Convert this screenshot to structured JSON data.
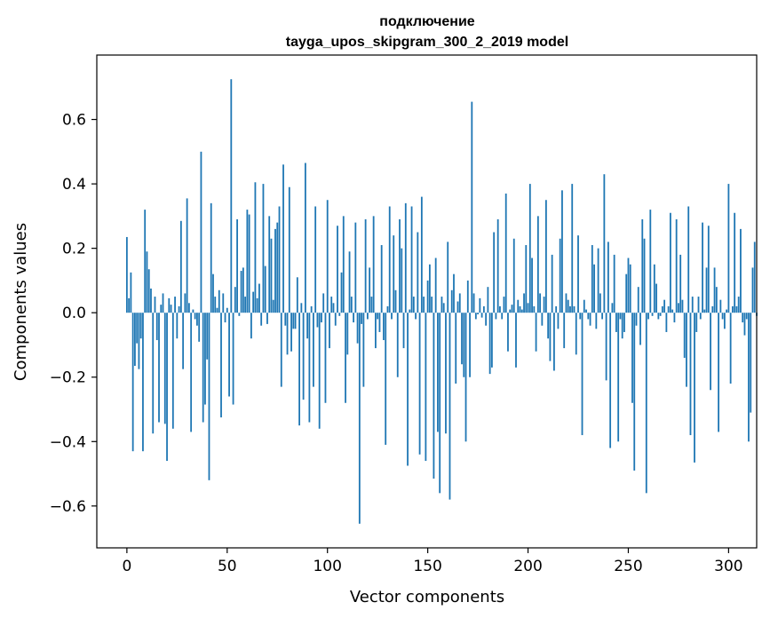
{
  "chart_data": {
    "type": "bar",
    "title_line1": "подключение",
    "title_line2": "tayga_upos_skipgram_300_2_2019 model",
    "xlabel": "Vector components",
    "ylabel": "Components values",
    "xlim": [
      -15,
      314
    ],
    "ylim": [
      -0.73,
      0.8
    ],
    "xticks": [
      0,
      50,
      100,
      150,
      200,
      250,
      300
    ],
    "xtick_labels": [
      "0",
      "50",
      "100",
      "150",
      "200",
      "250",
      "300"
    ],
    "yticks": [
      -0.6,
      -0.4,
      -0.2,
      0.0,
      0.2,
      0.4,
      0.6
    ],
    "ytick_labels": [
      "−0.6",
      "−0.4",
      "−0.2",
      "0.0",
      "0.2",
      "0.4",
      "0.6"
    ],
    "bar_color": "#1f77b4",
    "grid": false,
    "values": [
      0.235,
      0.045,
      0.125,
      -0.43,
      -0.165,
      -0.095,
      -0.175,
      -0.08,
      -0.43,
      0.32,
      0.19,
      0.135,
      0.075,
      -0.375,
      0.05,
      -0.085,
      -0.34,
      0.025,
      0.06,
      -0.345,
      -0.46,
      0.045,
      0.025,
      -0.36,
      0.05,
      -0.08,
      0.02,
      0.285,
      -0.175,
      0.06,
      0.355,
      0.03,
      -0.37,
      0.01,
      -0.02,
      -0.04,
      -0.09,
      0.5,
      -0.34,
      -0.285,
      -0.145,
      -0.52,
      0.34,
      0.12,
      0.05,
      0.015,
      0.07,
      -0.325,
      0.06,
      -0.03,
      0.015,
      -0.26,
      0.725,
      -0.285,
      0.08,
      0.29,
      -0.01,
      0.13,
      0.14,
      0.05,
      0.32,
      0.305,
      -0.08,
      0.065,
      0.405,
      0.045,
      0.09,
      -0.04,
      0.4,
      0.145,
      -0.035,
      0.3,
      0.23,
      0.04,
      0.26,
      0.28,
      0.33,
      -0.23,
      0.46,
      -0.04,
      -0.13,
      0.39,
      -0.12,
      -0.05,
      -0.05,
      0.11,
      -0.35,
      0.03,
      -0.27,
      0.465,
      -0.08,
      -0.34,
      0.02,
      -0.23,
      0.33,
      -0.045,
      -0.36,
      -0.03,
      0.06,
      -0.28,
      0.35,
      -0.11,
      0.05,
      0.03,
      -0.04,
      0.27,
      -0.01,
      0.125,
      0.3,
      -0.28,
      -0.13,
      0.19,
      0.05,
      -0.03,
      0.28,
      -0.095,
      -0.655,
      -0.035,
      -0.23,
      0.29,
      -0.02,
      0.14,
      0.05,
      0.3,
      -0.11,
      -0.02,
      -0.06,
      0.21,
      -0.085,
      -0.41,
      0.02,
      0.33,
      -0.02,
      0.24,
      0.07,
      -0.2,
      0.29,
      0.2,
      -0.11,
      0.34,
      -0.475,
      0.01,
      0.33,
      0.05,
      -0.02,
      0.25,
      -0.44,
      0.36,
      0.05,
      -0.46,
      0.1,
      0.15,
      0.05,
      -0.515,
      0.17,
      -0.37,
      -0.56,
      0.05,
      0.03,
      -0.375,
      0.22,
      -0.58,
      0.07,
      0.12,
      -0.22,
      0.035,
      0.06,
      -0.16,
      -0.2,
      -0.4,
      0.1,
      -0.2,
      0.655,
      0.06,
      -0.02,
      -0.005,
      0.045,
      -0.015,
      0.02,
      -0.04,
      0.08,
      -0.19,
      -0.17,
      0.25,
      -0.02,
      0.29,
      0.02,
      -0.02,
      0.05,
      0.37,
      -0.12,
      0.01,
      0.025,
      0.23,
      -0.17,
      0.04,
      0.02,
      0.01,
      0.06,
      0.21,
      0.03,
      0.4,
      0.17,
      0.02,
      -0.12,
      0.3,
      0.06,
      -0.04,
      0.05,
      0.35,
      -0.08,
      -0.15,
      0.18,
      -0.18,
      0.02,
      -0.05,
      0.23,
      0.38,
      -0.11,
      0.06,
      0.04,
      0.02,
      0.4,
      0.02,
      -0.13,
      0.24,
      -0.02,
      -0.38,
      0.04,
      0.01,
      -0.02,
      -0.04,
      0.21,
      0.15,
      -0.05,
      0.2,
      0.06,
      -0.02,
      0.43,
      -0.21,
      0.22,
      -0.42,
      0.03,
      0.18,
      -0.06,
      -0.4,
      -0.02,
      -0.08,
      -0.06,
      0.12,
      0.17,
      0.15,
      -0.28,
      -0.49,
      -0.04,
      0.08,
      -0.1,
      0.29,
      0.23,
      -0.56,
      -0.02,
      0.32,
      -0.01,
      0.15,
      0.09,
      -0.02,
      -0.01,
      0.02,
      0.04,
      -0.06,
      0.02,
      0.31,
      0.01,
      -0.03,
      0.29,
      0.03,
      0.18,
      0.04,
      -0.14,
      -0.23,
      0.33,
      -0.38,
      0.05,
      -0.465,
      -0.06,
      0.05,
      -0.02,
      0.28,
      0.01,
      0.14,
      0.27,
      -0.24,
      0.02,
      0.14,
      0.08,
      -0.37,
      0.04,
      -0.02,
      -0.05,
      0.01,
      0.4,
      -0.22,
      0.02,
      0.31,
      0.02,
      0.05,
      0.26,
      -0.03,
      -0.07,
      -0.02,
      -0.4,
      -0.31,
      0.14,
      0.22,
      -0.01
    ]
  }
}
